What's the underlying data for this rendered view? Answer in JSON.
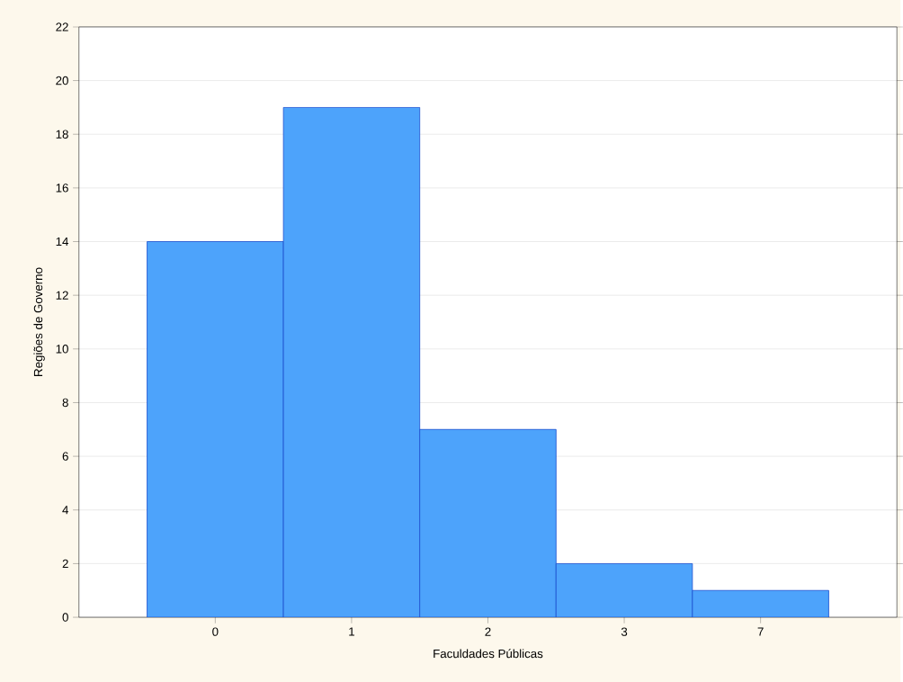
{
  "chart_data": {
    "type": "bar",
    "xlabel": "Faculdades Públicas",
    "ylabel": "Regiões de Governo",
    "categories": [
      "0",
      "1",
      "2",
      "3",
      "7"
    ],
    "values": [
      14,
      19,
      7,
      2,
      1
    ],
    "color": "#4da3fb",
    "ylim": [
      0,
      22
    ],
    "yticks": [
      0,
      2,
      4,
      6,
      8,
      10,
      12,
      14,
      16,
      18,
      20,
      22
    ],
    "grid": "y"
  }
}
